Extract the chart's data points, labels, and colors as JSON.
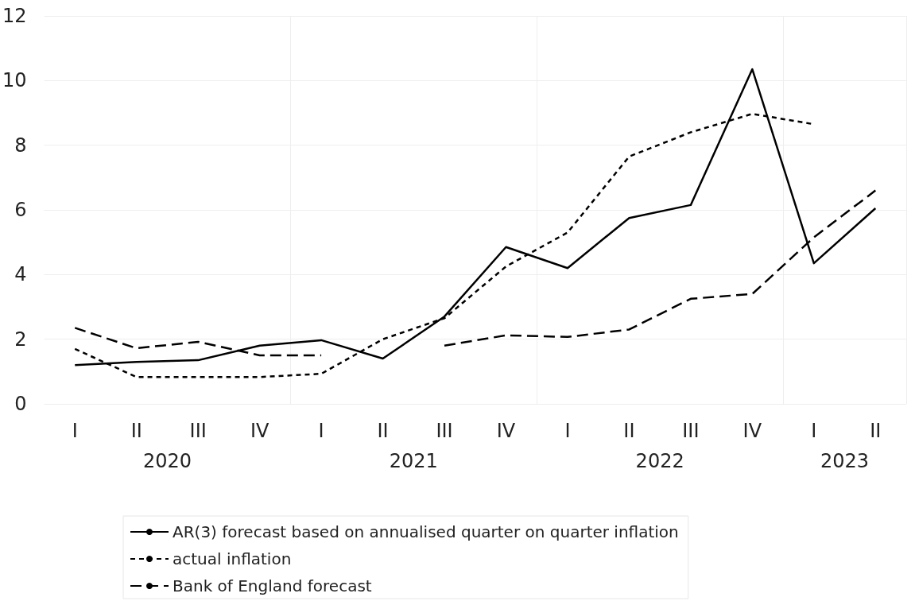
{
  "chart_data": {
    "type": "line",
    "categories": [
      "I",
      "II",
      "III",
      "IV",
      "I",
      "II",
      "III",
      "IV",
      "I",
      "II",
      "III",
      "IV",
      "I",
      "II"
    ],
    "series": [
      {
        "name": "AR(3) forecast based on annualised quarter on quarter inflation",
        "color": "#000000",
        "line_style": "solid",
        "values": [
          1.2,
          1.3,
          1.35,
          1.8,
          1.97,
          1.4,
          2.7,
          4.85,
          4.2,
          5.75,
          6.15,
          10.35,
          4.35,
          6.05
        ]
      },
      {
        "name": "actual inflation",
        "color": "#000000",
        "line_style": "dotted",
        "values": [
          1.7,
          0.83,
          0.83,
          0.83,
          0.93,
          2.0,
          2.65,
          4.25,
          5.3,
          7.65,
          8.4,
          8.97,
          8.65,
          null
        ]
      },
      {
        "name": "Bank of England forecast",
        "color": "#000000",
        "line_style": "dashed",
        "values": [
          2.35,
          1.72,
          1.92,
          1.5,
          1.5,
          null,
          1.8,
          2.12,
          2.07,
          2.3,
          3.25,
          3.4,
          5.15,
          6.6
        ]
      }
    ],
    "annotations": [
      "2020",
      "2021",
      "2022",
      "2023"
    ],
    "ylim": [
      0,
      12
    ],
    "yticks": [
      0,
      2,
      4,
      6,
      8,
      10,
      12
    ],
    "grid": true,
    "legend": "bottom",
    "marker": "none"
  }
}
